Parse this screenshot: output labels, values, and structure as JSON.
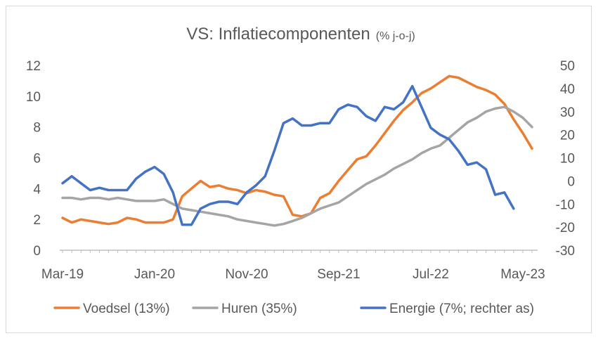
{
  "chart_data": {
    "type": "line",
    "title": "VS: Inflatiecomponenten",
    "subtitle": "(% j-o-j)",
    "x_tick_labels": [
      "Mar-19",
      "Jan-20",
      "Nov-20",
      "Sep-21",
      "Jul-22",
      "May-23"
    ],
    "y_left": {
      "ticks": [
        "0",
        "2",
        "4",
        "6",
        "8",
        "10",
        "12"
      ],
      "ylim": [
        0,
        12
      ]
    },
    "y_right": {
      "ticks": [
        "-30",
        "-20",
        "-10",
        "0",
        "10",
        "20",
        "30",
        "40",
        "50"
      ],
      "ylim": [
        -30,
        50
      ]
    },
    "grid": false,
    "legend_position": "bottom",
    "series": [
      {
        "name": "Voedsel (13%)",
        "axis": "left",
        "color": "#ED7D31",
        "values": [
          2.1,
          1.8,
          2.0,
          1.9,
          1.8,
          1.7,
          1.8,
          2.1,
          2.0,
          1.8,
          1.8,
          1.8,
          2.0,
          3.5,
          4.0,
          4.5,
          4.1,
          4.2,
          4.0,
          3.9,
          3.7,
          3.9,
          3.8,
          3.6,
          3.5,
          2.3,
          2.2,
          2.4,
          3.4,
          3.7,
          4.5,
          5.2,
          5.9,
          6.1,
          6.8,
          7.6,
          8.4,
          9.1,
          9.6,
          10.2,
          10.5,
          10.9,
          11.3,
          11.2,
          10.9,
          10.6,
          10.4,
          10.1,
          9.5,
          8.5,
          7.6,
          6.6
        ]
      },
      {
        "name": "Huren (35%)",
        "axis": "left",
        "color": "#A5A5A5",
        "values": [
          3.4,
          3.4,
          3.3,
          3.4,
          3.4,
          3.3,
          3.4,
          3.3,
          3.2,
          3.2,
          3.2,
          3.3,
          3.0,
          2.7,
          2.6,
          2.5,
          2.4,
          2.3,
          2.2,
          2.0,
          1.9,
          1.8,
          1.7,
          1.6,
          1.7,
          1.9,
          2.1,
          2.4,
          2.7,
          2.9,
          3.1,
          3.5,
          3.9,
          4.3,
          4.6,
          4.9,
          5.3,
          5.6,
          5.9,
          6.3,
          6.6,
          6.8,
          7.3,
          7.8,
          8.3,
          8.6,
          9.0,
          9.2,
          9.3,
          9.0,
          8.6,
          8.0
        ]
      },
      {
        "name": "Energie (7%; rechter as)",
        "axis": "right",
        "color": "#4472C4",
        "values": [
          -1,
          2,
          -1,
          -4,
          -3,
          -4,
          -4,
          -4,
          1,
          4,
          6,
          3,
          -5,
          -19,
          -19,
          -12,
          -10,
          -9,
          -9,
          -10,
          -5,
          -2,
          2,
          13,
          25,
          27,
          24,
          24,
          25,
          25,
          31,
          33,
          32,
          28,
          26,
          32,
          31,
          34,
          41,
          32,
          23,
          20,
          18,
          13,
          7,
          8,
          5,
          -6,
          -5,
          -12
        ]
      }
    ]
  }
}
